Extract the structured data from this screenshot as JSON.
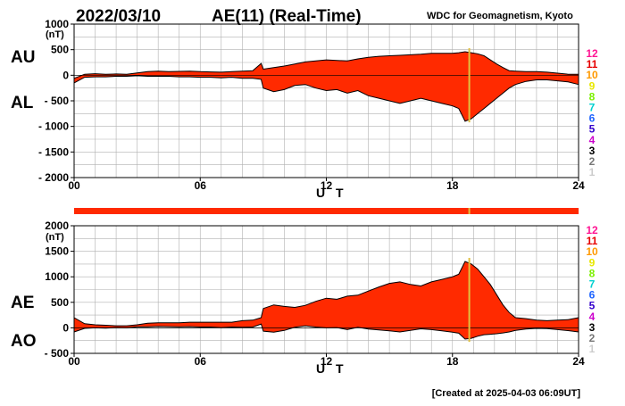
{
  "header": {
    "date": "2022/03/10",
    "title": "AE(11) (Real-Time)",
    "source": "WDC for Geomagnetism, Kyoto"
  },
  "footer": {
    "created": "[Created at 2025-04-03 06:09UT]"
  },
  "colors": {
    "fill": "#ff2a00",
    "outline": "#000000",
    "marker": "#e0c040",
    "grid": "#b0b0b0"
  },
  "station_counts": [
    {
      "label": "12",
      "color": "#ff1493"
    },
    {
      "label": "11",
      "color": "#e60000"
    },
    {
      "label": "10",
      "color": "#ff9900"
    },
    {
      "label": "9",
      "color": "#e8e800"
    },
    {
      "label": "8",
      "color": "#7cf000"
    },
    {
      "label": "7",
      "color": "#00d0d0"
    },
    {
      "label": "6",
      "color": "#1e64ff"
    },
    {
      "label": "5",
      "color": "#3300cc"
    },
    {
      "label": "4",
      "color": "#cc00cc"
    },
    {
      "label": "3",
      "color": "#000000"
    },
    {
      "label": "2",
      "color": "#777777"
    },
    {
      "label": "1",
      "color": "#cccccc"
    }
  ],
  "chart_data": [
    {
      "type": "area",
      "panel": "AU/AL",
      "upper_label": "AU",
      "lower_label": "AL",
      "unit": "(nT)",
      "ylim": [
        -2000,
        1000
      ],
      "yticks": [
        1000,
        500,
        0,
        -500,
        -1000,
        -1500,
        -2000
      ],
      "ytick_labels": [
        "1000",
        "500",
        "0",
        "- 500",
        "- 1000",
        "- 1500",
        "- 2000"
      ],
      "xlim": [
        0,
        24
      ],
      "xticks": [
        0,
        6,
        12,
        18,
        24
      ],
      "xtick_labels": [
        "00",
        "06",
        "12",
        "18",
        "24"
      ],
      "xlabel": "U T",
      "grid": true,
      "marker_hour": 18.8,
      "x": [
        0,
        0.5,
        1,
        1.5,
        2,
        2.5,
        3,
        3.5,
        4,
        4.5,
        5,
        5.5,
        6,
        6.5,
        7,
        7.5,
        8,
        8.5,
        8.9,
        9,
        9.5,
        10,
        10.5,
        11,
        11.5,
        12,
        12.5,
        13,
        13.5,
        14,
        14.5,
        15,
        15.5,
        16,
        16.5,
        17,
        17.5,
        18,
        18.3,
        18.6,
        18.9,
        19.2,
        19.5,
        19.8,
        20.1,
        20.4,
        20.7,
        21,
        21.5,
        22,
        22.5,
        23,
        23.5,
        24
      ],
      "series": [
        {
          "name": "AU",
          "values": [
            -60,
            20,
            30,
            20,
            25,
            20,
            45,
            70,
            80,
            70,
            75,
            80,
            70,
            65,
            60,
            70,
            80,
            90,
            230,
            120,
            150,
            180,
            220,
            260,
            280,
            300,
            290,
            280,
            320,
            350,
            370,
            380,
            390,
            400,
            410,
            430,
            430,
            430,
            440,
            460,
            440,
            420,
            380,
            300,
            220,
            150,
            90,
            80,
            70,
            70,
            60,
            40,
            20,
            20
          ]
        },
        {
          "name": "AL",
          "values": [
            -150,
            -40,
            -30,
            -30,
            -20,
            -20,
            -10,
            -20,
            -20,
            -20,
            -30,
            -30,
            -40,
            -40,
            -50,
            -40,
            -60,
            -60,
            -80,
            -250,
            -320,
            -280,
            -200,
            -180,
            -250,
            -300,
            -280,
            -350,
            -300,
            -400,
            -450,
            -500,
            -550,
            -500,
            -450,
            -500,
            -550,
            -600,
            -650,
            -900,
            -850,
            -750,
            -650,
            -550,
            -450,
            -350,
            -250,
            -180,
            -120,
            -90,
            -90,
            -110,
            -130,
            -180
          ]
        }
      ]
    },
    {
      "type": "area",
      "panel": "AE/AO",
      "upper_label": "AE",
      "lower_label": "AO",
      "unit": "(nT)",
      "ylim": [
        -500,
        2000
      ],
      "yticks": [
        2000,
        1500,
        1000,
        500,
        0,
        -500
      ],
      "ytick_labels": [
        "2000",
        "1500",
        "1000",
        "500",
        "0",
        "- 500"
      ],
      "xlim": [
        0,
        24
      ],
      "xticks": [
        0,
        6,
        12,
        18,
        24
      ],
      "xtick_labels": [
        "00",
        "06",
        "12",
        "18",
        "24"
      ],
      "xlabel": "U T",
      "grid": true,
      "marker_hour": 18.8,
      "x": [
        0,
        0.5,
        1,
        1.5,
        2,
        2.5,
        3,
        3.5,
        4,
        4.5,
        5,
        5.5,
        6,
        6.5,
        7,
        7.5,
        8,
        8.5,
        8.9,
        9,
        9.5,
        10,
        10.5,
        11,
        11.5,
        12,
        12.5,
        13,
        13.5,
        14,
        14.5,
        15,
        15.5,
        16,
        16.5,
        17,
        17.5,
        18,
        18.3,
        18.6,
        18.9,
        19.2,
        19.5,
        19.8,
        20.1,
        20.4,
        20.7,
        21,
        21.5,
        22,
        22.5,
        23,
        23.5,
        24
      ],
      "series": [
        {
          "name": "AE",
          "values": [
            200,
            80,
            60,
            50,
            40,
            40,
            60,
            90,
            100,
            100,
            100,
            110,
            110,
            110,
            110,
            110,
            140,
            150,
            200,
            380,
            450,
            420,
            400,
            440,
            520,
            580,
            560,
            620,
            640,
            720,
            800,
            870,
            900,
            850,
            820,
            900,
            950,
            1000,
            1050,
            1300,
            1250,
            1150,
            1000,
            850,
            650,
            450,
            300,
            200,
            180,
            150,
            140,
            150,
            160,
            200
          ]
        },
        {
          "name": "AO",
          "values": [
            -80,
            -10,
            0,
            -5,
            5,
            0,
            20,
            20,
            30,
            25,
            20,
            25,
            15,
            15,
            5,
            15,
            10,
            15,
            75,
            -65,
            -85,
            -50,
            10,
            40,
            15,
            0,
            5,
            -35,
            10,
            -25,
            -40,
            -60,
            -80,
            -50,
            -20,
            -35,
            -60,
            -85,
            -105,
            -220,
            -205,
            -165,
            -135,
            -125,
            -115,
            -100,
            -80,
            -50,
            -25,
            -10,
            -15,
            -35,
            -55,
            -80
          ]
        }
      ]
    }
  ]
}
